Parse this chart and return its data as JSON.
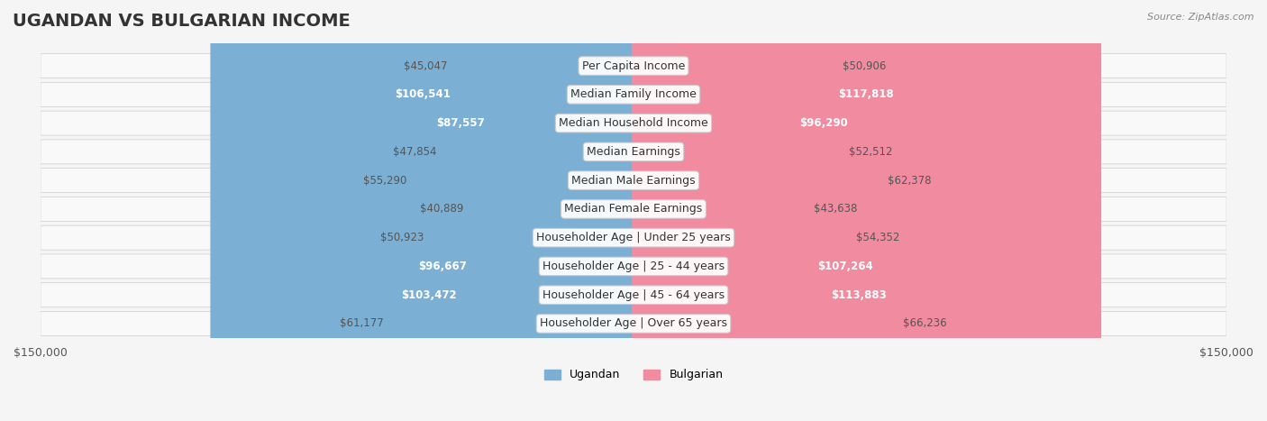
{
  "title": "UGANDAN VS BULGARIAN INCOME",
  "source": "Source: ZipAtlas.com",
  "categories": [
    "Per Capita Income",
    "Median Family Income",
    "Median Household Income",
    "Median Earnings",
    "Median Male Earnings",
    "Median Female Earnings",
    "Householder Age | Under 25 years",
    "Householder Age | 25 - 44 years",
    "Householder Age | 45 - 64 years",
    "Householder Age | Over 65 years"
  ],
  "ugandan": [
    45047,
    106541,
    87557,
    47854,
    55290,
    40889,
    50923,
    96667,
    103472,
    61177
  ],
  "bulgarian": [
    50906,
    117818,
    96290,
    52512,
    62378,
    43638,
    54352,
    107264,
    113883,
    66236
  ],
  "ugandan_color": "#7bafd4",
  "bulgarian_color": "#f08ba0",
  "ugandan_label_color_threshold": 80000,
  "bulgarian_label_color_threshold": 80000,
  "max_value": 150000,
  "background_color": "#f5f5f5",
  "row_bg_color": "#ffffff",
  "row_alt_bg": "#f0f0f0",
  "title_fontsize": 14,
  "label_fontsize": 9,
  "value_fontsize": 8.5,
  "legend_fontsize": 9
}
